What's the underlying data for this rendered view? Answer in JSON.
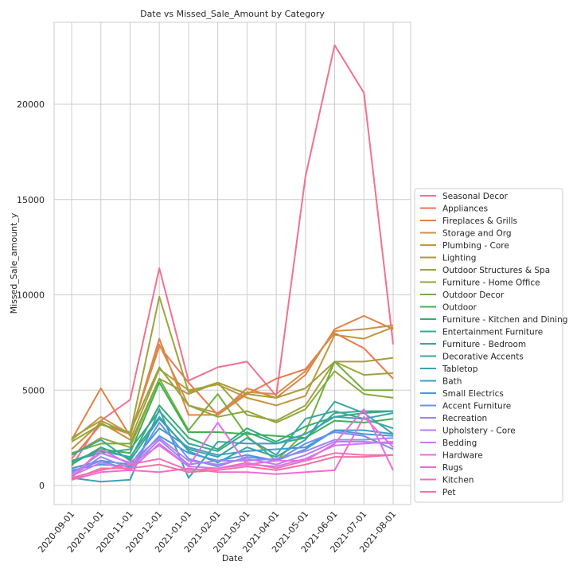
{
  "chart_data": {
    "type": "line",
    "title": "Date vs Missed_Sale_Amount by Category",
    "xlabel": "Date",
    "ylabel": "Missed_Sale_amount_y",
    "categories": [
      "2020-09-01",
      "2020-10-01",
      "2020-11-01",
      "2020-12-01",
      "2021-01-01",
      "2021-02-01",
      "2021-03-01",
      "2021-04-01",
      "2021-05-01",
      "2021-06-01",
      "2021-07-01",
      "2021-08-01"
    ],
    "yticks": [
      0,
      5000,
      10000,
      15000,
      20000
    ],
    "yticklabels": [
      "0",
      "5000",
      "10000",
      "15000",
      "20000"
    ],
    "ylim": [
      -1000,
      24300
    ],
    "grid": true,
    "legend_position": "center-right",
    "series": [
      {
        "name": "Seasonal Decor",
        "color": "#f0728f",
        "values": [
          1000,
          3400,
          4500,
          11400,
          5500,
          6200,
          6500,
          4700,
          16200,
          23100,
          20600,
          7400
        ]
      },
      {
        "name": "Appliances",
        "color": "#ec7750",
        "values": [
          1400,
          3200,
          2700,
          7300,
          5400,
          3700,
          4800,
          5600,
          6100,
          8000,
          7200,
          5600
        ]
      },
      {
        "name": "Fireplaces & Grills",
        "color": "#e28145",
        "values": [
          2400,
          5100,
          2600,
          7700,
          3700,
          3700,
          5100,
          4600,
          5800,
          8200,
          8900,
          8200
        ]
      },
      {
        "name": "Storage and Org",
        "color": "#d08f48",
        "values": [
          2400,
          3600,
          2700,
          7400,
          4200,
          3800,
          4900,
          4800,
          6000,
          8100,
          8200,
          8400
        ]
      },
      {
        "name": "Plumbing - Core",
        "color": "#c1963b",
        "values": [
          1900,
          3300,
          2400,
          6100,
          5000,
          5300,
          4600,
          4200,
          4700,
          7900,
          7700,
          8300
        ]
      },
      {
        "name": "Lighting",
        "color": "#a89c3a",
        "values": [
          1600,
          2500,
          2000,
          5600,
          4800,
          5400,
          4800,
          4600,
          5100,
          6500,
          6500,
          6700
        ]
      },
      {
        "name": "Outdoor Structures & Spa",
        "color": "#9da43a",
        "values": [
          2500,
          3400,
          2700,
          9900,
          4900,
          5400,
          3700,
          3400,
          4200,
          6500,
          5800,
          5900
        ]
      },
      {
        "name": "Furniture - Home Office",
        "color": "#8ba93b",
        "values": [
          2300,
          3200,
          2800,
          6200,
          4200,
          3600,
          3900,
          3300,
          4000,
          6000,
          4800,
          4600
        ]
      },
      {
        "name": "Outdoor Decor",
        "color": "#6fb03e",
        "values": [
          1700,
          2200,
          2200,
          5600,
          2900,
          4800,
          2600,
          1300,
          2800,
          6500,
          5000,
          5000
        ]
      },
      {
        "name": "Outdoor",
        "color": "#41b050",
        "values": [
          1200,
          1900,
          1700,
          5400,
          2800,
          2800,
          2700,
          2600,
          2500,
          3400,
          3300,
          3500
        ]
      },
      {
        "name": "Furniture - Kitchen and Dining",
        "color": "#35ac73",
        "values": [
          1100,
          2000,
          1400,
          4200,
          2500,
          1900,
          3000,
          2300,
          3100,
          3600,
          3800,
          3900
        ]
      },
      {
        "name": "Entertainment Furniture",
        "color": "#36aa8b",
        "values": [
          1300,
          1700,
          1900,
          3900,
          2200,
          1800,
          2800,
          2200,
          2500,
          3800,
          3900,
          3900
        ]
      },
      {
        "name": "Furniture - Bedroom",
        "color": "#37a89b",
        "values": [
          1600,
          2400,
          1300,
          3500,
          1900,
          1500,
          2500,
          1600,
          3500,
          3900,
          3500,
          3000
        ]
      },
      {
        "name": "Decorative Accents",
        "color": "#38a6a6",
        "values": [
          1300,
          1800,
          1500,
          3600,
          1800,
          1200,
          2000,
          1500,
          2400,
          4400,
          3800,
          2700
        ]
      },
      {
        "name": "Tabletop",
        "color": "#3aa2b6",
        "values": [
          400,
          200,
          300,
          4000,
          400,
          2300,
          2200,
          2200,
          2700,
          3600,
          3500,
          3800
        ]
      },
      {
        "name": "Bath",
        "color": "#3d9ec8",
        "values": [
          900,
          1300,
          1100,
          3000,
          2000,
          1600,
          1800,
          1900,
          2000,
          2900,
          2900,
          2700
        ]
      },
      {
        "name": "Small Electrics",
        "color": "#4a97df",
        "values": [
          800,
          1100,
          1000,
          2600,
          1700,
          1300,
          1600,
          1300,
          1900,
          2900,
          2700,
          2600
        ]
      },
      {
        "name": "Accent Furniture",
        "color": "#6e8ff2",
        "values": [
          700,
          1300,
          800,
          3300,
          1400,
          1000,
          1500,
          1300,
          2200,
          2800,
          2600,
          1900
        ]
      },
      {
        "name": "Recreation",
        "color": "#9b87f5",
        "values": [
          500,
          1500,
          900,
          2400,
          1100,
          1300,
          1300,
          1400,
          1800,
          2400,
          2400,
          2500
        ]
      },
      {
        "name": "Upholstery - Core",
        "color": "#b57ff4",
        "values": [
          600,
          1700,
          1200,
          2500,
          1300,
          1100,
          1400,
          1100,
          1600,
          2300,
          2300,
          2200
        ]
      },
      {
        "name": "Bedding",
        "color": "#cd78ef",
        "values": [
          500,
          1200,
          800,
          2200,
          1000,
          900,
          1100,
          1000,
          1400,
          2100,
          2200,
          2300
        ]
      },
      {
        "name": "Hardware",
        "color": "#e56ee6",
        "values": [
          400,
          1900,
          1100,
          2100,
          1000,
          3300,
          1100,
          1300,
          1300,
          2200,
          4000,
          800
        ]
      },
      {
        "name": "Rugs",
        "color": "#f26ad6",
        "values": [
          300,
          700,
          800,
          700,
          900,
          700,
          700,
          600,
          700,
          800,
          3600,
          2000
        ]
      },
      {
        "name": "Kitchen",
        "color": "#f46ebc",
        "values": [
          400,
          800,
          1100,
          1400,
          800,
          900,
          1200,
          900,
          1300,
          1700,
          1600,
          1600
        ]
      },
      {
        "name": "Pet",
        "color": "#f5709f",
        "values": [
          300,
          900,
          900,
          1100,
          700,
          800,
          1000,
          800,
          1100,
          1500,
          1500,
          1600
        ]
      }
    ]
  }
}
